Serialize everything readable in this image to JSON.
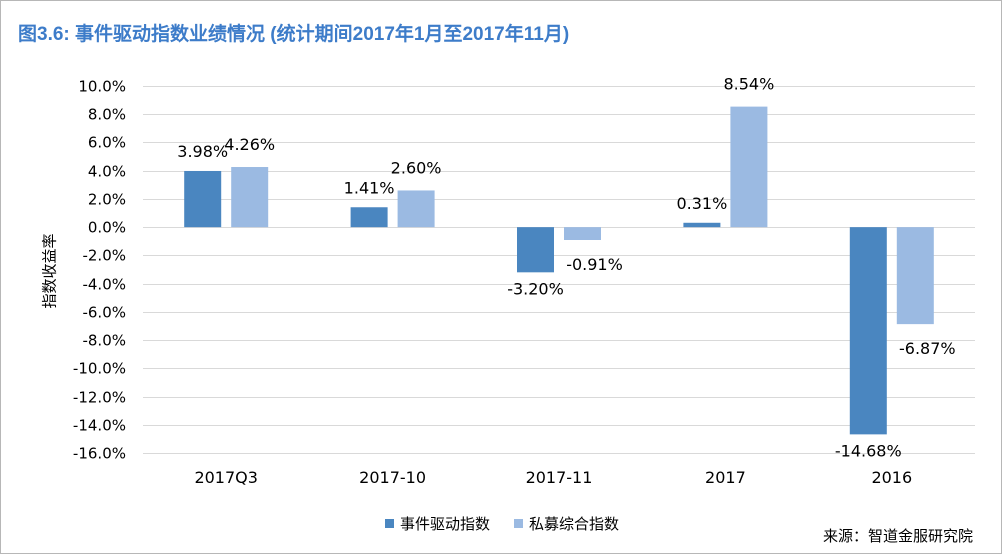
{
  "title": "图3.6: 事件驱动指数业绩情况 (统计期间2017年1月至2017年11月)",
  "source": "来源：智道金服研究院",
  "colors": {
    "title": "#3d7cc9",
    "series1": "#4a86c0",
    "series2": "#9bbae2",
    "grid": "#d9d9d9"
  },
  "chart_data": {
    "type": "bar",
    "categories": [
      "2017Q3",
      "2017-10",
      "2017-11",
      "2017",
      "2016"
    ],
    "series": [
      {
        "name": "事件驱动指数",
        "values": [
          3.98,
          1.41,
          -3.2,
          0.31,
          -14.68
        ],
        "labels": [
          "3.98%",
          "1.41%",
          "-3.20%",
          "0.31%",
          "-14.68%"
        ]
      },
      {
        "name": "私募综合指数",
        "values": [
          4.26,
          2.6,
          -0.91,
          8.54,
          -6.87
        ],
        "labels": [
          "4.26%",
          "2.60%",
          "-0.91%",
          "8.54%",
          "-6.87%"
        ]
      }
    ],
    "ylabel": "指数收益率",
    "xlabel": "",
    "ylim": [
      -16,
      10
    ],
    "ytick_step": 2,
    "ytick_labels": [
      "10.0%",
      "8.0%",
      "6.0%",
      "4.0%",
      "2.0%",
      "0.0%",
      "-2.0%",
      "-4.0%",
      "-6.0%",
      "-8.0%",
      "-10.0%",
      "-12.0%",
      "-14.0%",
      "-16.0%"
    ],
    "grid": true,
    "legend_position": "bottom"
  }
}
